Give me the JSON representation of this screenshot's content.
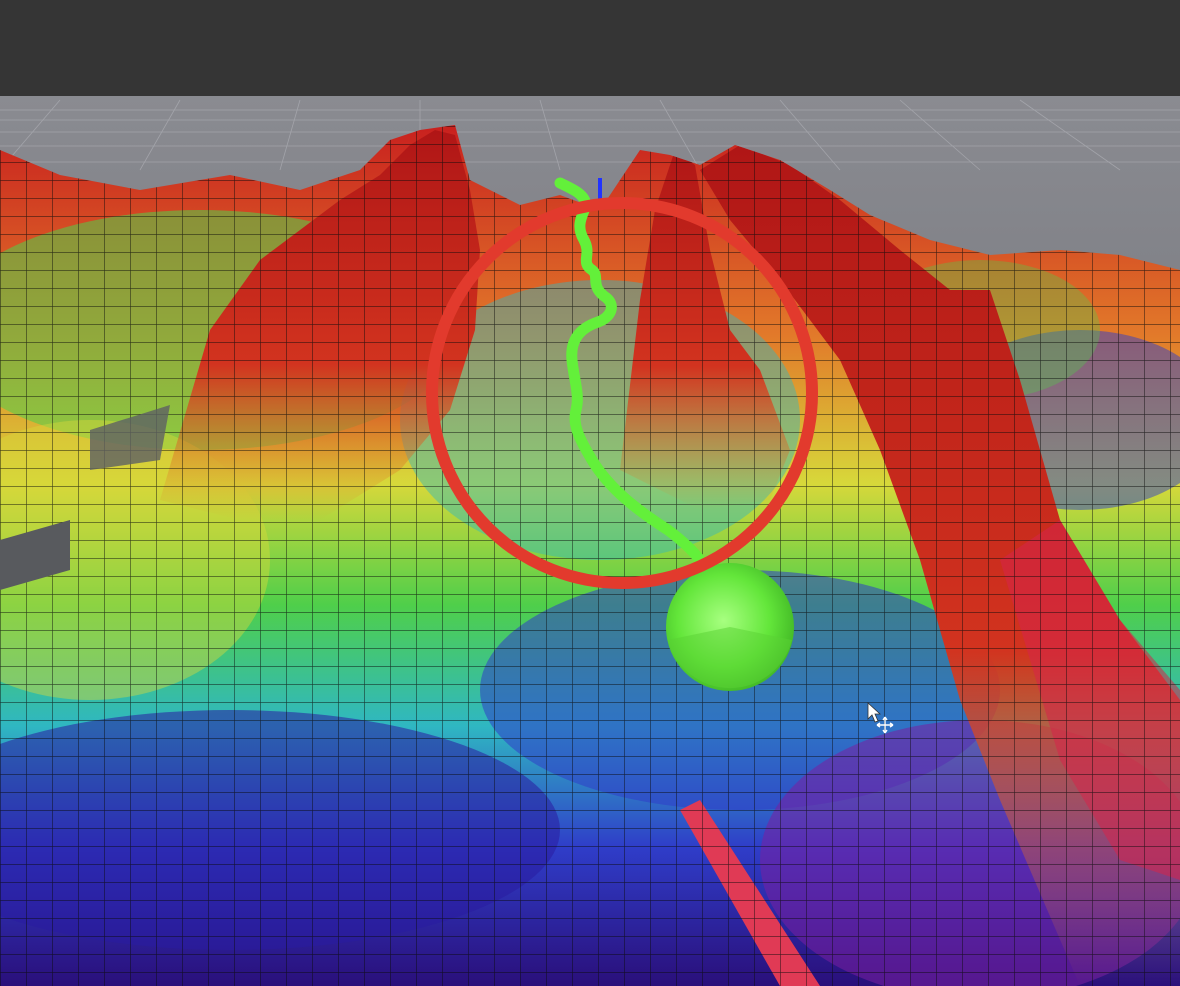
{
  "window": {
    "toolbar_color": "#353535"
  },
  "viewport": {
    "background_color": "#6f6f74",
    "colormap": [
      "#2a0f7a",
      "#2f3dc9",
      "#2fb7c2",
      "#4fcf4a",
      "#d7d83a",
      "#e27a2a",
      "#c81e1e"
    ],
    "mesh_color": "#0b0b0b"
  },
  "path": {
    "color": "#63f03a"
  },
  "goal_marker": {
    "color": "#66ee3a",
    "icon": "cone-marker-icon"
  },
  "highlight": {
    "color": "#e23a2d",
    "shape": "circle"
  },
  "cursor": {
    "icon": "move-cursor-icon"
  }
}
